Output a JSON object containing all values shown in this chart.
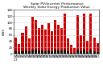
{
  "title": "Solar PV/Inverter Performance\nWeekly Solar Energy Production Value",
  "title_fontsize": 3.2,
  "bar_color": "#cc0000",
  "marker_color": "#111111",
  "bg_color": "#ffffff",
  "grid_color": "#bbbbbb",
  "ylabel": "kWh",
  "ylabel_fontsize": 3.0,
  "tick_fontsize": 2.8,
  "xlabel_fontsize": 2.5,
  "ylim": [
    0,
    140
  ],
  "yticks": [
    0,
    20,
    40,
    60,
    80,
    100,
    120,
    140
  ],
  "bars": [
    {
      "label": "W1\n'23",
      "value": 52,
      "marker": 7
    },
    {
      "label": "W3",
      "value": 30,
      "marker": 5
    },
    {
      "label": "W5",
      "value": 68,
      "marker": 8
    },
    {
      "label": "W7",
      "value": 88,
      "marker": 10
    },
    {
      "label": "W9",
      "value": 50,
      "marker": 7
    },
    {
      "label": "W11",
      "value": 118,
      "marker": 13
    },
    {
      "label": "W13",
      "value": 108,
      "marker": 12
    },
    {
      "label": "W15",
      "value": 82,
      "marker": 10
    },
    {
      "label": "W17",
      "value": 92,
      "marker": 11
    },
    {
      "label": "W19",
      "value": 78,
      "marker": 9
    },
    {
      "label": "W21",
      "value": 98,
      "marker": 11
    },
    {
      "label": "W23",
      "value": 72,
      "marker": 9
    },
    {
      "label": "W25",
      "value": 108,
      "marker": 12
    },
    {
      "label": "W27",
      "value": 93,
      "marker": 11
    },
    {
      "label": "W29",
      "value": 82,
      "marker": 10
    },
    {
      "label": "W31",
      "value": 128,
      "marker": 14
    },
    {
      "label": "W33",
      "value": 48,
      "marker": 7
    },
    {
      "label": "W35",
      "value": 28,
      "marker": 4
    },
    {
      "label": "W37",
      "value": 18,
      "marker": 3
    },
    {
      "label": "W39",
      "value": 122,
      "marker": 14
    },
    {
      "label": "W41",
      "value": 58,
      "marker": 8
    },
    {
      "label": "W43",
      "value": 128,
      "marker": 14
    },
    {
      "label": "W45",
      "value": 42,
      "marker": 6
    },
    {
      "label": "W47",
      "value": 128,
      "marker": 14
    },
    {
      "label": "W49",
      "value": 52,
      "marker": 7
    },
    {
      "label": "W51",
      "value": 33,
      "marker": 5
    }
  ]
}
